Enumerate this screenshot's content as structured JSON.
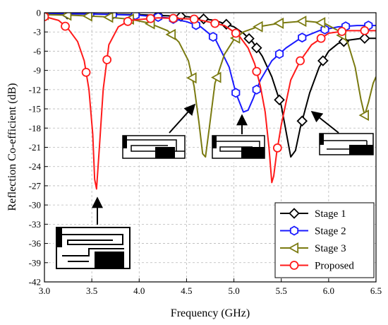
{
  "chart_data": {
    "type": "line",
    "xlabel": "Frequency (GHz)",
    "ylabel": "Reflection Co-efficient (dB)",
    "xlim": [
      3.0,
      6.5
    ],
    "ylim": [
      -42,
      0
    ],
    "xticks": [
      "3.0",
      "3.5",
      "4.0",
      "4.5",
      "5.0",
      "5.5",
      "6.0",
      "6.5"
    ],
    "yticks": [
      "0",
      "-3",
      "-6",
      "-9",
      "-12",
      "-15",
      "-18",
      "-21",
      "-24",
      "-27",
      "-30",
      "-33",
      "-36",
      "-39",
      "-42"
    ],
    "grid": true,
    "legend_position": "bottom-right",
    "series": [
      {
        "name": "Stage 1",
        "color": "#000000",
        "marker": "diamond",
        "x": [
          3.0,
          3.5,
          4.0,
          4.5,
          4.8,
          5.0,
          5.1,
          5.2,
          5.3,
          5.4,
          5.5,
          5.55,
          5.6,
          5.65,
          5.7,
          5.8,
          5.9,
          6.0,
          6.1,
          6.2,
          6.35,
          6.5
        ],
        "y": [
          -0.2,
          -0.2,
          -0.3,
          -0.6,
          -1.2,
          -2.2,
          -3.2,
          -4.6,
          -6.8,
          -10.0,
          -14.5,
          -18.5,
          -22.5,
          -21.5,
          -18.0,
          -12.5,
          -8.5,
          -6.0,
          -4.8,
          -4.3,
          -4.0,
          -4.0
        ],
        "marker_x": [
          3.0,
          3.24,
          3.48,
          3.72,
          3.96,
          4.2,
          4.44,
          4.68,
          4.92,
          5.16,
          5.24,
          5.48,
          5.72,
          5.94,
          6.16,
          6.38
        ]
      },
      {
        "name": "Stage 2",
        "color": "#1a1aff",
        "marker": "hexagon",
        "x": [
          3.0,
          3.5,
          4.0,
          4.3,
          4.5,
          4.65,
          4.8,
          4.95,
          5.02,
          5.1,
          5.15,
          5.2,
          5.28,
          5.4,
          5.55,
          5.7,
          5.9,
          6.1,
          6.3,
          6.5
        ],
        "y": [
          -0.1,
          -0.2,
          -0.4,
          -0.8,
          -1.4,
          -2.2,
          -4.0,
          -8.5,
          -12.5,
          -15.5,
          -15.2,
          -13.5,
          -10.5,
          -7.5,
          -5.5,
          -4.0,
          -2.8,
          -2.2,
          -2.0,
          -2.0
        ],
        "marker_x": [
          3.0,
          3.24,
          3.48,
          3.72,
          3.96,
          4.2,
          4.36,
          4.6,
          4.78,
          5.02,
          5.24,
          5.48,
          5.72,
          5.96,
          6.18,
          6.42
        ]
      },
      {
        "name": "Stage 3",
        "color": "#7a7a10",
        "marker": "triangle-left",
        "x": [
          3.0,
          3.3,
          3.6,
          3.9,
          4.1,
          4.3,
          4.42,
          4.52,
          4.58,
          4.63,
          4.67,
          4.7,
          4.74,
          4.8,
          4.9,
          5.0,
          5.1,
          5.25,
          5.5,
          5.75,
          5.95,
          6.1,
          6.2,
          6.28,
          6.34,
          6.38,
          6.42,
          6.47,
          6.5
        ],
        "y": [
          -0.3,
          -0.4,
          -0.6,
          -1.0,
          -1.6,
          -2.8,
          -4.6,
          -7.5,
          -11.5,
          -17.0,
          -22.0,
          -22.5,
          -18.0,
          -11.0,
          -6.5,
          -4.2,
          -3.0,
          -2.2,
          -1.6,
          -1.3,
          -1.6,
          -2.8,
          -4.6,
          -8.5,
          -13.5,
          -16.0,
          -14.0,
          -11.0,
          -10.0
        ],
        "marker_x": [
          3.0,
          3.24,
          3.46,
          3.68,
          3.9,
          4.12,
          4.34,
          4.56,
          4.82,
          5.02,
          5.26,
          5.48,
          5.72,
          5.92,
          6.14,
          6.38
        ]
      },
      {
        "name": "Proposed",
        "color": "#ff1a1a",
        "marker": "circle",
        "x": [
          3.0,
          3.15,
          3.25,
          3.35,
          3.42,
          3.47,
          3.51,
          3.53,
          3.55,
          3.58,
          3.62,
          3.68,
          3.78,
          3.9,
          4.2,
          4.6,
          4.9,
          5.05,
          5.15,
          5.22,
          5.28,
          5.33,
          5.37,
          5.4,
          5.42,
          5.45,
          5.5,
          5.6,
          5.7,
          5.82,
          6.0,
          6.2,
          6.5
        ],
        "y": [
          -0.6,
          -1.2,
          -2.5,
          -4.5,
          -7.5,
          -12.0,
          -19.0,
          -26.0,
          -27.5,
          -21.0,
          -12.0,
          -5.0,
          -2.2,
          -1.2,
          -0.8,
          -1.0,
          -2.0,
          -3.5,
          -5.5,
          -8.0,
          -11.5,
          -15.5,
          -21.0,
          -26.5,
          -25.5,
          -22.0,
          -17.5,
          -10.5,
          -7.5,
          -5.0,
          -3.2,
          -2.8,
          -2.8
        ],
        "marker_x": [
          3.0,
          3.22,
          3.44,
          3.66,
          3.88,
          4.12,
          4.36,
          4.58,
          4.8,
          5.02,
          5.24,
          5.46,
          5.7,
          5.92,
          6.14,
          6.38
        ]
      }
    ],
    "insets": [
      {
        "name": "stage-1-inset-icon",
        "arrow_to": [
          5.7,
          -19.5
        ]
      },
      {
        "name": "stage-2-inset-icon",
        "arrow_to": [
          5.13,
          -16.5
        ]
      },
      {
        "name": "stage-3-inset-icon",
        "arrow_to": [
          4.6,
          -17.0
        ]
      },
      {
        "name": "proposed-inset-icon",
        "arrow_to": [
          3.54,
          -28.0
        ]
      }
    ]
  }
}
